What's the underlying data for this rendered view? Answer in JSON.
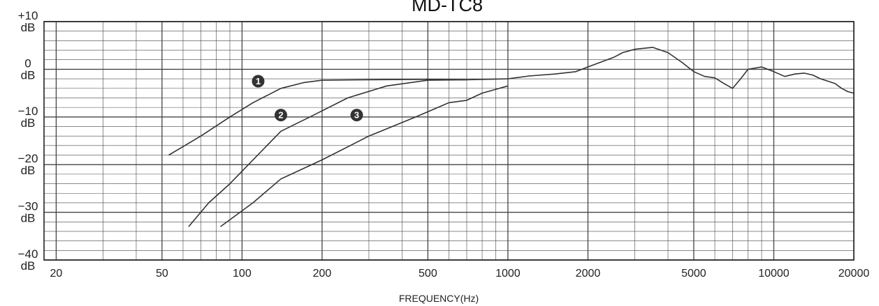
{
  "chart_data": {
    "type": "line",
    "title": "MD-TC8",
    "xlabel": "FREQUENCY(Hz)",
    "ylabel": "",
    "x_scale": "log",
    "xlim": [
      18,
      20000
    ],
    "ylim": [
      -40,
      10
    ],
    "grid": true,
    "x_ticks": [
      20,
      50,
      100,
      200,
      500,
      1000,
      2000,
      5000,
      10000,
      20000
    ],
    "x_tick_labels": [
      "20",
      "50",
      "100",
      "200",
      "500",
      "1000",
      "2000",
      "5000",
      "10000",
      "20000"
    ],
    "y_ticks": [
      {
        "value": 10,
        "top": "+10",
        "bottom": "dB"
      },
      {
        "value": 0,
        "top": "0",
        "bottom": "dB"
      },
      {
        "value": -10,
        "top": "−10",
        "bottom": "dB"
      },
      {
        "value": -20,
        "top": "−20",
        "bottom": "dB"
      },
      {
        "value": -30,
        "top": "−30",
        "bottom": "dB"
      },
      {
        "value": -40,
        "top": "−40",
        "bottom": "dB"
      }
    ],
    "series": [
      {
        "marker": "1",
        "color": "#333333",
        "points": [
          [
            53,
            -18
          ],
          [
            70,
            -14
          ],
          [
            90,
            -10
          ],
          [
            110,
            -7
          ],
          [
            140,
            -4
          ],
          [
            170,
            -2.8
          ],
          [
            200,
            -2.3
          ],
          [
            300,
            -2.2
          ],
          [
            500,
            -2.1
          ],
          [
            700,
            -2.2
          ]
        ]
      },
      {
        "marker": "2",
        "color": "#333333",
        "points": [
          [
            63,
            -33
          ],
          [
            75,
            -28
          ],
          [
            90,
            -24
          ],
          [
            110,
            -19
          ],
          [
            140,
            -13
          ],
          [
            180,
            -10
          ],
          [
            250,
            -6
          ],
          [
            350,
            -3.5
          ],
          [
            500,
            -2.3
          ],
          [
            700,
            -2.2
          ]
        ]
      },
      {
        "marker": "3",
        "color": "#333333",
        "points": [
          [
            83,
            -33
          ],
          [
            110,
            -28
          ],
          [
            140,
            -23
          ],
          [
            200,
            -19
          ],
          [
            300,
            -14
          ],
          [
            450,
            -10
          ],
          [
            600,
            -7
          ],
          [
            700,
            -6.5
          ],
          [
            800,
            -5
          ],
          [
            1000,
            -3.5
          ]
        ]
      }
    ],
    "common_curve": {
      "color": "#333333",
      "points": [
        [
          700,
          -2.2
        ],
        [
          1000,
          -2
        ],
        [
          1200,
          -1.4
        ],
        [
          1500,
          -1
        ],
        [
          1800,
          -0.5
        ],
        [
          2000,
          0.5
        ],
        [
          2500,
          2.5
        ],
        [
          2700,
          3.5
        ],
        [
          3000,
          4.2
        ],
        [
          3500,
          4.6
        ],
        [
          4000,
          3.5
        ],
        [
          4500,
          1.5
        ],
        [
          5000,
          -0.5
        ],
        [
          5500,
          -1.5
        ],
        [
          6000,
          -1.8
        ],
        [
          6500,
          -3
        ],
        [
          7000,
          -4
        ],
        [
          7500,
          -2
        ],
        [
          8000,
          0
        ],
        [
          9000,
          0.5
        ],
        [
          10000,
          -0.5
        ],
        [
          11000,
          -1.5
        ],
        [
          12000,
          -1
        ],
        [
          13000,
          -0.8
        ],
        [
          14000,
          -1.2
        ],
        [
          15000,
          -2
        ],
        [
          16000,
          -2.5
        ],
        [
          17000,
          -3
        ],
        [
          18000,
          -4
        ],
        [
          19000,
          -4.7
        ],
        [
          20000,
          -5
        ]
      ]
    },
    "markers": [
      {
        "label": "1",
        "x": 115,
        "y": -2.5
      },
      {
        "label": "2",
        "x": 140,
        "y": -9.6
      },
      {
        "label": "3",
        "x": 270,
        "y": -9.6
      }
    ],
    "legend": "none"
  }
}
